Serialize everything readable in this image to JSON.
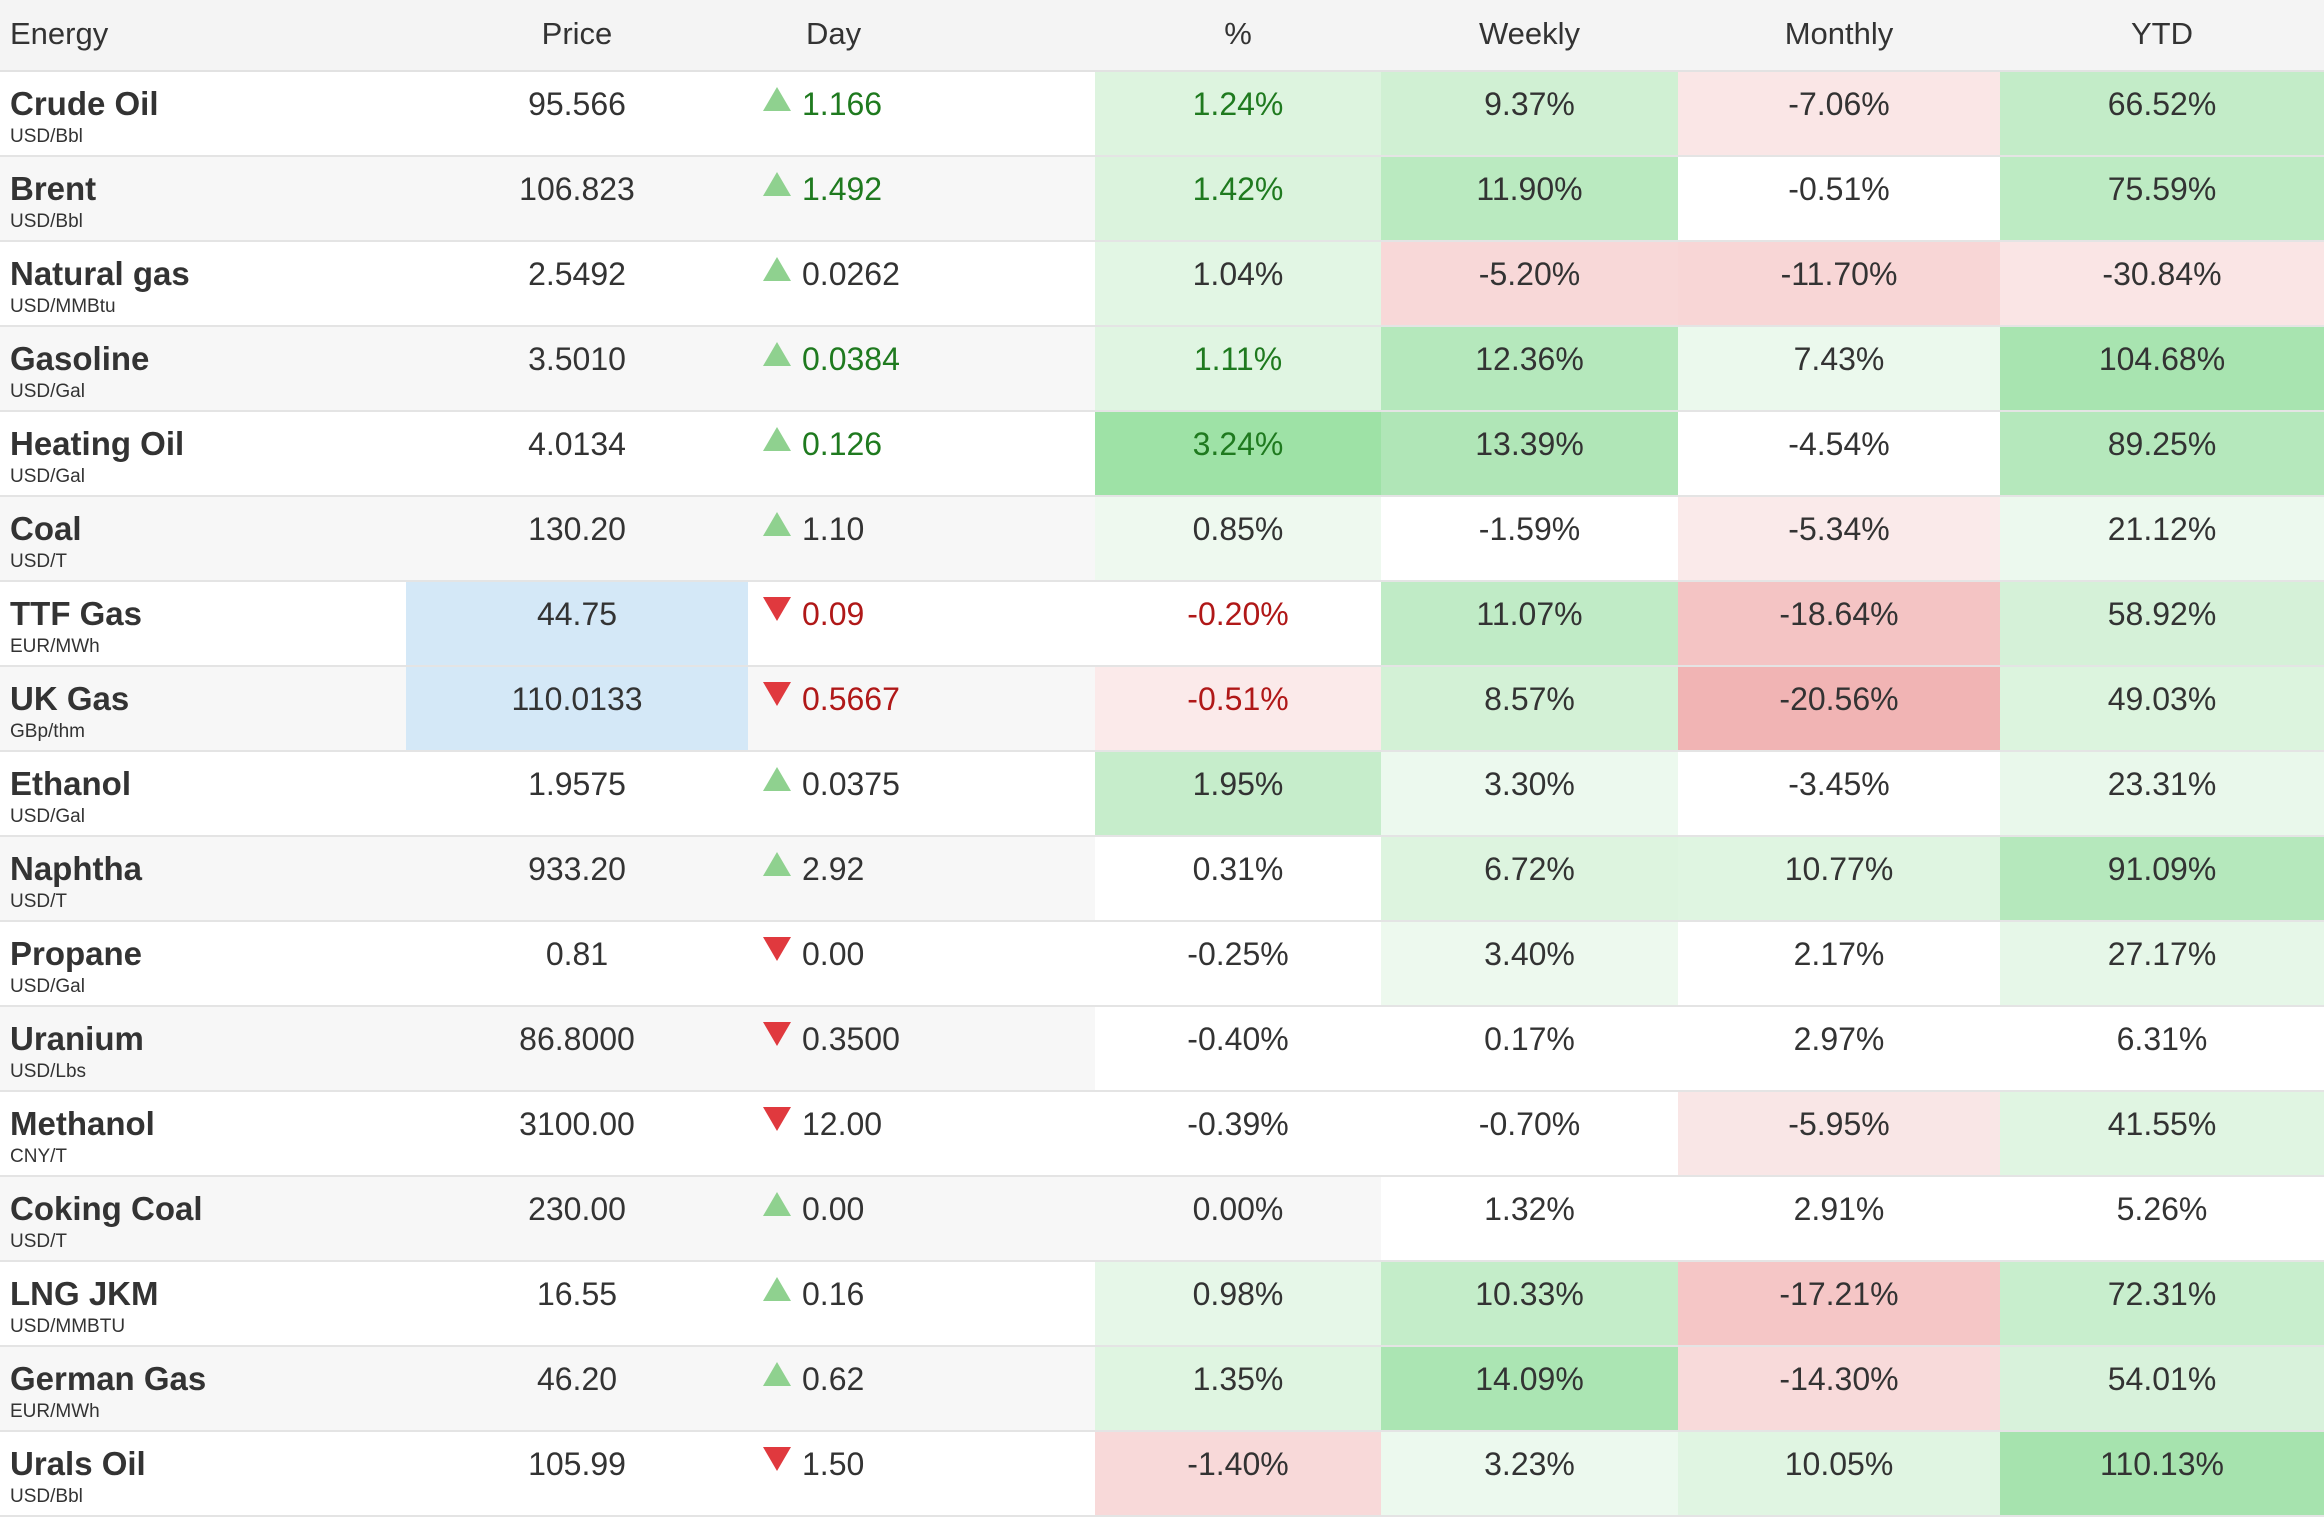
{
  "headers": [
    "Energy",
    "Price",
    "Day",
    "%",
    "Weekly",
    "Monthly",
    "YTD"
  ],
  "colors": {
    "up_arrow": "#8fd18f",
    "down_arrow": "#e0393e",
    "positive_text": "#1f7a1f",
    "negative_text": "#b01818",
    "highlight_blue": "#d4e8f7"
  },
  "rows": [
    {
      "name": "Crude Oil",
      "unit": "USD/Bbl",
      "price": "95.566",
      "price_bg": "",
      "dir": "up",
      "day": "1.166",
      "day_tone": "pos",
      "pct": "1.24%",
      "pct_tone": "pos",
      "pct_bg": "#ddf4df",
      "weekly": "9.37%",
      "weekly_bg": "#d0f0d3",
      "monthly": "-7.06%",
      "monthly_bg": "#fae6e6",
      "ytd": "66.52%",
      "ytd_bg": "#c3ecc8"
    },
    {
      "name": "Brent",
      "unit": "USD/Bbl",
      "price": "106.823",
      "price_bg": "",
      "dir": "up",
      "day": "1.492",
      "day_tone": "pos",
      "pct": "1.42%",
      "pct_tone": "pos",
      "pct_bg": "#dbf3dd",
      "weekly": "11.90%",
      "weekly_bg": "#baeac0",
      "monthly": "-0.51%",
      "monthly_bg": "#ffffff",
      "ytd": "75.59%",
      "ytd_bg": "#bdebc3"
    },
    {
      "name": "Natural gas",
      "unit": "USD/MMBtu",
      "price": "2.5492",
      "price_bg": "",
      "dir": "up",
      "day": "0.0262",
      "day_tone": "neutral",
      "pct": "1.04%",
      "pct_tone": "neutral",
      "pct_bg": "#e2f6e4",
      "weekly": "-5.20%",
      "weekly_bg": "#f8d8d8",
      "monthly": "-11.70%",
      "monthly_bg": "#f8d6d6",
      "ytd": "-30.84%",
      "ytd_bg": "#fae5e5"
    },
    {
      "name": "Gasoline",
      "unit": "USD/Gal",
      "price": "3.5010",
      "price_bg": "",
      "dir": "up",
      "day": "0.0384",
      "day_tone": "pos",
      "pct": "1.11%",
      "pct_tone": "pos",
      "pct_bg": "#e0f5e2",
      "weekly": "12.36%",
      "weekly_bg": "#b5e8bc",
      "monthly": "7.43%",
      "monthly_bg": "#ebf9ed",
      "ytd": "104.68%",
      "ytd_bg": "#a8e4b0"
    },
    {
      "name": "Heating Oil",
      "unit": "USD/Gal",
      "price": "4.0134",
      "price_bg": "",
      "dir": "up",
      "day": "0.126",
      "day_tone": "pos",
      "pct": "3.24%",
      "pct_tone": "pos",
      "pct_bg": "#9ee2a6",
      "weekly": "13.39%",
      "weekly_bg": "#b0e6b7",
      "monthly": "-4.54%",
      "monthly_bg": "#ffffff",
      "ytd": "89.25%",
      "ytd_bg": "#b5e8bc"
    },
    {
      "name": "Coal",
      "unit": "USD/T",
      "price": "130.20",
      "price_bg": "",
      "dir": "up",
      "day": "1.10",
      "day_tone": "neutral",
      "pct": "0.85%",
      "pct_tone": "neutral",
      "pct_bg": "#eef9ef",
      "weekly": "-1.59%",
      "weekly_bg": "#ffffff",
      "monthly": "-5.34%",
      "monthly_bg": "#faeaea",
      "ytd": "21.12%",
      "ytd_bg": "#ecf9ee"
    },
    {
      "name": "TTF Gas",
      "unit": "EUR/MWh",
      "price": "44.75",
      "price_bg": "#d4e8f7",
      "dir": "down",
      "day": "0.09",
      "day_tone": "neg",
      "pct": "-0.20%",
      "pct_tone": "neg",
      "pct_bg": "#ffffff",
      "weekly": "11.07%",
      "weekly_bg": "#c0ebc6",
      "monthly": "-18.64%",
      "monthly_bg": "#f4c4c4",
      "ytd": "58.92%",
      "ytd_bg": "#d5f1d8"
    },
    {
      "name": "UK Gas",
      "unit": "GBp/thm",
      "price": "110.0133",
      "price_bg": "#d4e8f7",
      "dir": "down",
      "day": "0.5667",
      "day_tone": "neg",
      "pct": "-0.51%",
      "pct_tone": "neg",
      "pct_bg": "#fbeaea",
      "weekly": "8.57%",
      "weekly_bg": "#d3f1d6",
      "monthly": "-20.56%",
      "monthly_bg": "#f1b4b4",
      "ytd": "49.03%",
      "ytd_bg": "#dcf4de"
    },
    {
      "name": "Ethanol",
      "unit": "USD/Gal",
      "price": "1.9575",
      "price_bg": "",
      "dir": "up",
      "day": "0.0375",
      "day_tone": "neutral",
      "pct": "1.95%",
      "pct_tone": "neutral",
      "pct_bg": "#c6edcb",
      "weekly": "3.30%",
      "weekly_bg": "#ecf9ee",
      "monthly": "-3.45%",
      "monthly_bg": "#ffffff",
      "ytd": "23.31%",
      "ytd_bg": "#e9f8eb"
    },
    {
      "name": "Naphtha",
      "unit": "USD/T",
      "price": "933.20",
      "price_bg": "",
      "dir": "up",
      "day": "2.92",
      "day_tone": "neutral",
      "pct": "0.31%",
      "pct_tone": "neutral",
      "pct_bg": "#ffffff",
      "weekly": "6.72%",
      "weekly_bg": "#ddf4df",
      "monthly": "10.77%",
      "monthly_bg": "#dff5e1",
      "ytd": "91.09%",
      "ytd_bg": "#b5e8bc"
    },
    {
      "name": "Propane",
      "unit": "USD/Gal",
      "price": "0.81",
      "price_bg": "",
      "dir": "down",
      "day": "0.00",
      "day_tone": "neutral",
      "pct": "-0.25%",
      "pct_tone": "neutral",
      "pct_bg": "#ffffff",
      "weekly": "3.40%",
      "weekly_bg": "#edf9ee",
      "monthly": "2.17%",
      "monthly_bg": "#ffffff",
      "ytd": "27.17%",
      "ytd_bg": "#e6f7e8"
    },
    {
      "name": "Uranium",
      "unit": "USD/Lbs",
      "price": "86.8000",
      "price_bg": "",
      "dir": "down",
      "day": "0.3500",
      "day_tone": "neutral",
      "pct": "-0.40%",
      "pct_tone": "neutral",
      "pct_bg": "#ffffff",
      "weekly": "0.17%",
      "weekly_bg": "#ffffff",
      "monthly": "2.97%",
      "monthly_bg": "#ffffff",
      "ytd": "6.31%",
      "ytd_bg": "#ffffff"
    },
    {
      "name": "Methanol",
      "unit": "CNY/T",
      "price": "3100.00",
      "price_bg": "",
      "dir": "down",
      "day": "12.00",
      "day_tone": "neutral",
      "pct": "-0.39%",
      "pct_tone": "neutral",
      "pct_bg": "#ffffff",
      "weekly": "-0.70%",
      "weekly_bg": "#ffffff",
      "monthly": "-5.95%",
      "monthly_bg": "#f9e6e6",
      "ytd": "41.55%",
      "ytd_bg": "#e0f5e2"
    },
    {
      "name": "Coking Coal",
      "unit": "USD/T",
      "price": "230.00",
      "price_bg": "",
      "dir": "up",
      "day": "0.00",
      "day_tone": "neutral",
      "pct": "0.00%",
      "pct_tone": "neutral",
      "pct_bg": "",
      "weekly": "1.32%",
      "weekly_bg": "#ffffff",
      "monthly": "2.91%",
      "monthly_bg": "#ffffff",
      "ytd": "5.26%",
      "ytd_bg": "#ffffff"
    },
    {
      "name": "LNG JKM",
      "unit": "USD/MMBTU",
      "price": "16.55",
      "price_bg": "",
      "dir": "up",
      "day": "0.16",
      "day_tone": "neutral",
      "pct": "0.98%",
      "pct_tone": "neutral",
      "pct_bg": "#e6f7e8",
      "weekly": "10.33%",
      "weekly_bg": "#c4edc9",
      "monthly": "-17.21%",
      "monthly_bg": "#f5c6c6",
      "ytd": "72.31%",
      "ytd_bg": "#c8eecd"
    },
    {
      "name": "German Gas",
      "unit": "EUR/MWh",
      "price": "46.20",
      "price_bg": "",
      "dir": "up",
      "day": "0.62",
      "day_tone": "neutral",
      "pct": "1.35%",
      "pct_tone": "neutral",
      "pct_bg": "#dff5e1",
      "weekly": "14.09%",
      "weekly_bg": "#abe5b3",
      "monthly": "-14.30%",
      "monthly_bg": "#f8dada",
      "ytd": "54.01%",
      "ytd_bg": "#d8f2db"
    },
    {
      "name": "Urals Oil",
      "unit": "USD/Bbl",
      "price": "105.99",
      "price_bg": "",
      "dir": "down",
      "day": "1.50",
      "day_tone": "neutral",
      "pct": "-1.40%",
      "pct_tone": "neutral",
      "pct_bg": "#f8d9d9",
      "weekly": "3.23%",
      "weekly_bg": "#ecf9ee",
      "monthly": "10.05%",
      "monthly_bg": "#e0f5e2",
      "ytd": "110.13%",
      "ytd_bg": "#a6e3ae"
    }
  ]
}
